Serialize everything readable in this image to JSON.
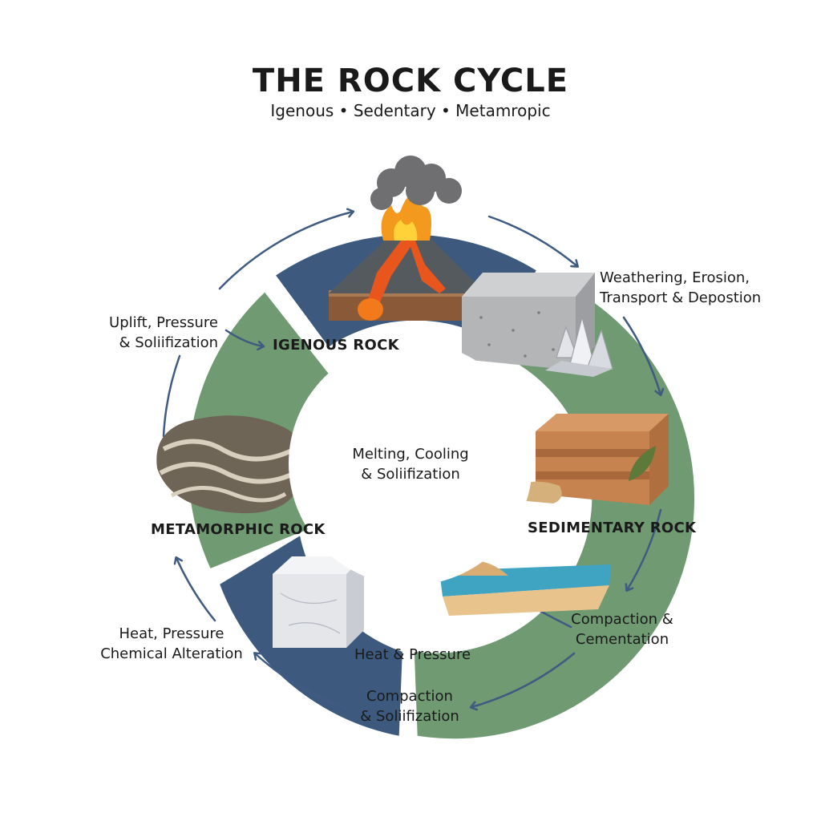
{
  "title": "THE ROCK CYCLE",
  "subtitle": "Igenous • Sedentary • Metamropic",
  "rocks": {
    "igneous": "IGENOUS ROCK",
    "sedimentary": "SEDIMENTARY ROCK",
    "metamorphic": "METAMORPHIC ROCK"
  },
  "center": {
    "line1": "Melting, Cooling",
    "line2": "& Soliifization"
  },
  "processes": {
    "weathering": {
      "line1": "Weathering, Erosion,",
      "line2": "Transport & Depostion"
    },
    "uplift": {
      "line1": "Uplift, Pressure",
      "line2": "& Soliifization"
    },
    "compaction_cementation": {
      "line1": "Compaction &",
      "line2": "Cementation"
    },
    "heat_pressure_chem": {
      "line1": "Heat, Pressure",
      "line2": "Chemical Alteration"
    },
    "heat_pressure": "Heat & Pressure",
    "compaction_solidification": {
      "line1": "Compaction",
      "line2": "& Soliifization"
    }
  },
  "colors": {
    "blue": "#3d5a7e",
    "green": "#6f9a72",
    "arrow": "#3f5b82"
  }
}
